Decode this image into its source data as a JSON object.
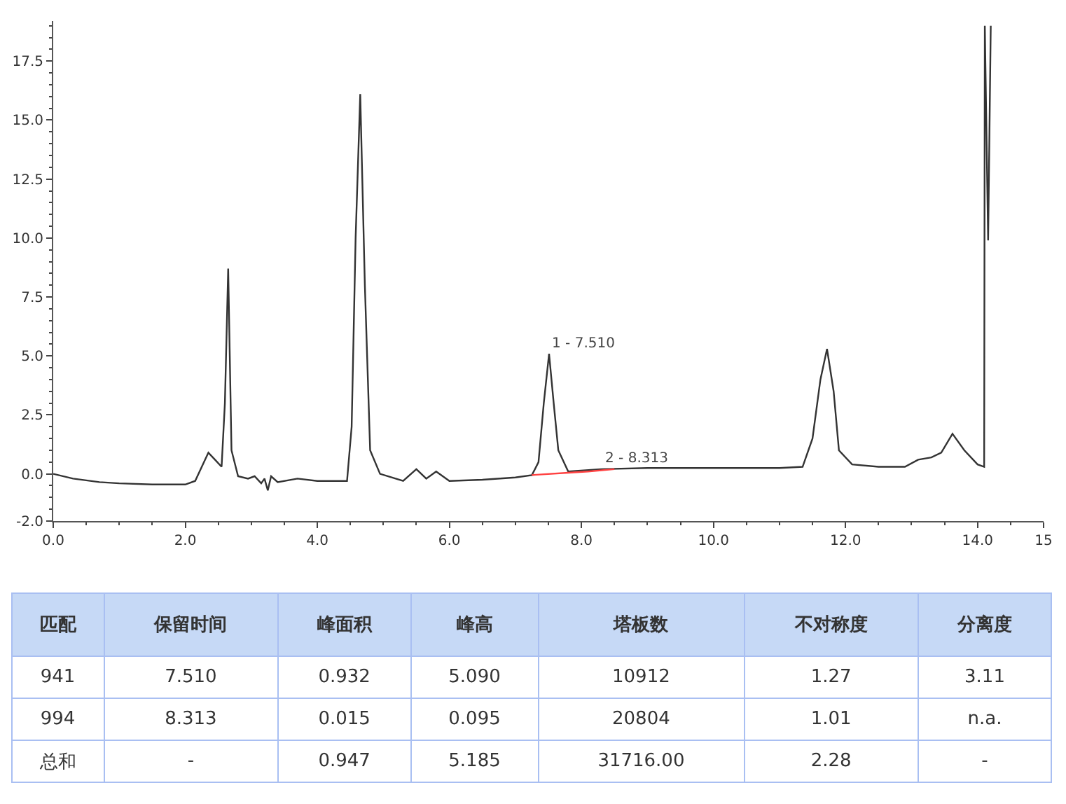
{
  "chart_data": [
    {
      "type": "line",
      "x": [
        0,
        0.3,
        0.7,
        1.0,
        1.5,
        2.0,
        2.15,
        2.25,
        2.35,
        2.45,
        2.55,
        2.6,
        2.65,
        2.7,
        2.8,
        2.95,
        3.05,
        3.15,
        3.2,
        3.25,
        3.3,
        3.4,
        3.7,
        4.0,
        4.45,
        4.52,
        4.58,
        4.65,
        4.72,
        4.8,
        4.95,
        5.3,
        5.5,
        5.65,
        5.8,
        6.0,
        6.5,
        7.0,
        7.25,
        7.35,
        7.43,
        7.51,
        7.58,
        7.65,
        7.8,
        8.3,
        9.0,
        10.0,
        11.0,
        11.35,
        11.5,
        11.62,
        11.72,
        11.82,
        11.9,
        12.1,
        12.5,
        12.9,
        13.1,
        13.3,
        13.45,
        13.62,
        13.8,
        14.0,
        14.1,
        14.11,
        14.16,
        14.2
      ],
      "series": [
        {
          "color": "#333333",
          "values": [
            0.0,
            -0.2,
            -0.35,
            -0.4,
            -0.45,
            -0.45,
            -0.3,
            0.3,
            0.9,
            0.6,
            0.3,
            3.0,
            8.7,
            1.0,
            -0.1,
            -0.2,
            -0.1,
            -0.4,
            -0.2,
            -0.7,
            -0.1,
            -0.35,
            -0.2,
            -0.3,
            -0.3,
            2.0,
            10.0,
            16.1,
            8.0,
            1.0,
            0.0,
            -0.3,
            0.2,
            -0.2,
            0.1,
            -0.3,
            -0.25,
            -0.15,
            -0.05,
            0.5,
            3.0,
            5.09,
            3.0,
            1.0,
            0.1,
            0.2,
            0.25,
            0.25,
            0.25,
            0.3,
            1.5,
            4.0,
            5.3,
            3.5,
            1.0,
            0.4,
            0.3,
            0.3,
            0.6,
            0.7,
            0.9,
            1.7,
            1.0,
            0.4,
            0.3,
            19.0,
            9.9,
            19.0
          ]
        },
        {
          "color": "#ff4040",
          "x": [
            7.25,
            7.8,
            8.1,
            8.5
          ],
          "values": [
            -0.05,
            0.05,
            0.1,
            0.2
          ]
        }
      ],
      "xlim": [
        0,
        15
      ],
      "ylim": [
        -2.0,
        19.2
      ],
      "xticks": [
        {
          "value": 0,
          "label": "0.0"
        },
        {
          "value": 2,
          "label": "2.0"
        },
        {
          "value": 4,
          "label": "4.0"
        },
        {
          "value": 6,
          "label": "6.0"
        },
        {
          "value": 8,
          "label": "8.0"
        },
        {
          "value": 10,
          "label": "10.0"
        },
        {
          "value": 12,
          "label": "12.0"
        },
        {
          "value": 14,
          "label": "14.0"
        },
        {
          "value": 15,
          "label": "15"
        }
      ],
      "yticks": [
        {
          "value": -2,
          "label": "-2.0"
        },
        {
          "value": 0,
          "label": "0.0"
        },
        2.5,
        {
          "value": 5,
          "label": "5.0"
        },
        7.5,
        {
          "value": 10,
          "label": "10.0"
        },
        12.5,
        {
          "value": 15,
          "label": "15.0"
        },
        17.5
      ],
      "annotations": [
        {
          "text": "1 - 7.510",
          "x": 7.51,
          "y": 5.09
        },
        {
          "text": "2 - 8.313",
          "x": 8.313,
          "y": 0.2
        }
      ]
    },
    {
      "type": "other",
      "categories": [
        "匹配",
        "保留时间",
        "峰面积",
        "峰高",
        "塔板数",
        "不对称度",
        "分离度"
      ],
      "cell_labels": [
        [
          "941",
          "7.510",
          "0.932",
          "5.090",
          "10912",
          "1.27",
          "3.11"
        ],
        [
          "994",
          "8.313",
          "0.015",
          "0.095",
          "20804",
          "1.01",
          "n.a."
        ],
        [
          "总和",
          "-",
          "0.947",
          "5.185",
          "31716.00",
          "2.28",
          "-"
        ]
      ]
    }
  ]
}
